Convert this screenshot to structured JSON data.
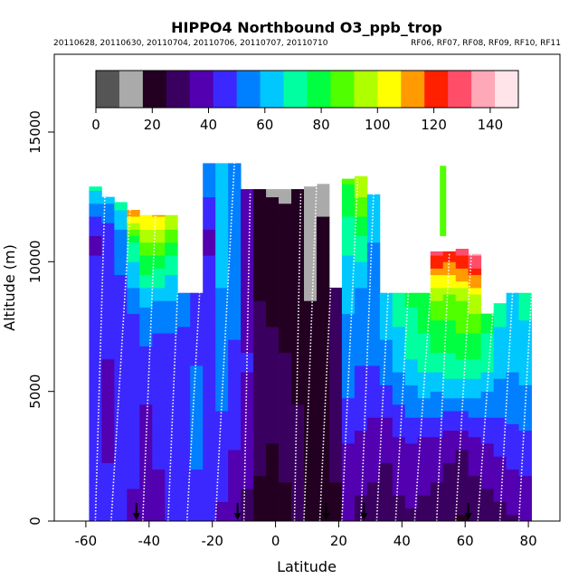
{
  "chart_data": {
    "type": "heatmap",
    "title": "HIPPO4 Northbound O3_ppb_trop",
    "subtitle_left": "20110628, 20110630, 20110704, 20110706, 20110707, 20110710",
    "subtitle_right": "RF06, RF07, RF08, RF09, RF10, RF11",
    "xlabel": "Latitude",
    "ylabel": "Altitude (m)",
    "xlim": [
      -70,
      90
    ],
    "ylim": [
      0,
      18000
    ],
    "x_ticks": [
      -60,
      -40,
      -20,
      0,
      20,
      40,
      60,
      80
    ],
    "y_ticks": [
      0,
      5000,
      10000,
      15000
    ],
    "colorbar": {
      "range": [
        0,
        150
      ],
      "ticks": [
        0,
        20,
        40,
        60,
        80,
        100,
        120,
        140
      ],
      "colors": [
        "#555555",
        "#aaaaaa",
        "#230022",
        "#3a0060",
        "#5200b0",
        "#3b28ff",
        "#0080ff",
        "#00c8ff",
        "#00ffa0",
        "#00ff40",
        "#50ff00",
        "#b0ff00",
        "#ffff00",
        "#ff9a00",
        "#ff2000",
        "#ff4d6a",
        "#ffa8b8",
        "#ffe4ea"
      ]
    },
    "columns": [
      {
        "lat": -57,
        "top": 12900,
        "prof": [
          [
            0,
            45
          ],
          [
            4000,
            42
          ],
          [
            8000,
            46
          ],
          [
            11000,
            40
          ],
          [
            12900,
            68
          ]
        ]
      },
      {
        "lat": -53,
        "top": 12500,
        "prof": [
          [
            0,
            43
          ],
          [
            5000,
            40
          ],
          [
            9000,
            45
          ],
          [
            11000,
            42
          ],
          [
            12500,
            62
          ]
        ]
      },
      {
        "lat": -49,
        "top": 12300,
        "prof": [
          [
            0,
            42
          ],
          [
            5000,
            44
          ],
          [
            9000,
            48
          ],
          [
            11000,
            55
          ],
          [
            12300,
            70
          ]
        ]
      },
      {
        "lat": -45,
        "top": 12000,
        "prof": [
          [
            0,
            40
          ],
          [
            4000,
            45
          ],
          [
            8000,
            50
          ],
          [
            10500,
            70
          ],
          [
            12000,
            120
          ]
        ]
      },
      {
        "lat": -41,
        "top": 11800,
        "prof": [
          [
            0,
            38
          ],
          [
            5000,
            42
          ],
          [
            8000,
            55
          ],
          [
            10500,
            88
          ],
          [
            11800,
            108
          ]
        ]
      },
      {
        "lat": -37,
        "top": 11800,
        "prof": [
          [
            0,
            40
          ],
          [
            5000,
            44
          ],
          [
            8000,
            52
          ],
          [
            10500,
            85
          ],
          [
            11800,
            110
          ]
        ]
      },
      {
        "lat": -33,
        "top": 11800,
        "prof": [
          [
            0,
            42
          ],
          [
            4000,
            45
          ],
          [
            7000,
            48
          ],
          [
            10000,
            70
          ],
          [
            11800,
            100
          ]
        ]
      },
      {
        "lat": -29,
        "top": 8800,
        "prof": [
          [
            0,
            44
          ],
          [
            3000,
            50
          ],
          [
            6000,
            48
          ],
          [
            8800,
            52
          ]
        ]
      },
      {
        "lat": -25,
        "top": 8800,
        "prof": [
          [
            0,
            46
          ],
          [
            3000,
            52
          ],
          [
            6000,
            50
          ],
          [
            8800,
            48
          ]
        ]
      },
      {
        "lat": -21,
        "top": 13800,
        "prof": [
          [
            0,
            44
          ],
          [
            4000,
            48
          ],
          [
            8000,
            46
          ],
          [
            11000,
            40
          ],
          [
            13800,
            58
          ]
        ]
      },
      {
        "lat": -17,
        "top": 13800,
        "prof": [
          [
            0,
            40
          ],
          [
            3000,
            48
          ],
          [
            7000,
            55
          ],
          [
            10000,
            60
          ],
          [
            13800,
            62
          ]
        ]
      },
      {
        "lat": -13,
        "top": 13800,
        "prof": [
          [
            0,
            38
          ],
          [
            3000,
            42
          ],
          [
            7000,
            50
          ],
          [
            10000,
            55
          ],
          [
            13800,
            58
          ]
        ]
      },
      {
        "lat": -9,
        "top": 12800,
        "prof": [
          [
            0,
            30
          ],
          [
            3000,
            38
          ],
          [
            6000,
            42
          ],
          [
            9000,
            40
          ],
          [
            12800,
            35
          ]
        ]
      },
      {
        "lat": -5,
        "top": 12800,
        "prof": [
          [
            0,
            20
          ],
          [
            3000,
            28
          ],
          [
            6000,
            30
          ],
          [
            9000,
            24
          ],
          [
            12800,
            18
          ]
        ]
      },
      {
        "lat": -1,
        "top": 12800,
        "prof": [
          [
            0,
            22
          ],
          [
            3000,
            25
          ],
          [
            6000,
            28
          ],
          [
            9000,
            22
          ],
          [
            12800,
            16
          ]
        ]
      },
      {
        "lat": 3,
        "top": 12800,
        "prof": [
          [
            0,
            24
          ],
          [
            3000,
            26
          ],
          [
            6000,
            26
          ],
          [
            9000,
            21
          ],
          [
            12800,
            16
          ]
        ]
      },
      {
        "lat": 7,
        "top": 12800,
        "prof": [
          [
            0,
            26
          ],
          [
            3000,
            26
          ],
          [
            6000,
            24
          ],
          [
            9000,
            20
          ],
          [
            12800,
            17
          ]
        ]
      },
      {
        "lat": 11,
        "top": 12900,
        "prof": [
          [
            0,
            22
          ],
          [
            3000,
            20
          ],
          [
            6000,
            20
          ],
          [
            9000,
            16
          ],
          [
            12900,
            14
          ]
        ]
      },
      {
        "lat": 15,
        "top": 13000,
        "prof": [
          [
            0,
            20
          ],
          [
            3000,
            18
          ],
          [
            6000,
            20
          ],
          [
            9000,
            18
          ],
          [
            13000,
            16
          ]
        ]
      },
      {
        "lat": 19,
        "top": 9000,
        "prof": [
          [
            0,
            24
          ],
          [
            3000,
            26
          ],
          [
            6000,
            28
          ],
          [
            9000,
            30
          ]
        ]
      },
      {
        "lat": 23,
        "top": 13200,
        "prof": [
          [
            0,
            34
          ],
          [
            3000,
            42
          ],
          [
            6000,
            55
          ],
          [
            9000,
            60
          ],
          [
            11000,
            70
          ],
          [
            13200,
            85
          ]
        ]
      },
      {
        "lat": 27,
        "top": 13300,
        "prof": [
          [
            0,
            30
          ],
          [
            3000,
            40
          ],
          [
            6000,
            50
          ],
          [
            9000,
            58
          ],
          [
            11000,
            75
          ],
          [
            13300,
            100
          ]
        ]
      },
      {
        "lat": 31,
        "top": 12600,
        "prof": [
          [
            0,
            28
          ],
          [
            3000,
            38
          ],
          [
            6000,
            50
          ],
          [
            9000,
            55
          ],
          [
            12600,
            62
          ]
        ]
      },
      {
        "lat": 35,
        "top": 8800,
        "prof": [
          [
            0,
            28
          ],
          [
            3000,
            35
          ],
          [
            6000,
            55
          ],
          [
            8800,
            65
          ]
        ]
      },
      {
        "lat": 39,
        "top": 8800,
        "prof": [
          [
            0,
            30
          ],
          [
            3000,
            40
          ],
          [
            6000,
            60
          ],
          [
            8800,
            72
          ]
        ]
      },
      {
        "lat": 43,
        "top": 8800,
        "prof": [
          [
            0,
            32
          ],
          [
            3000,
            42
          ],
          [
            6000,
            65
          ],
          [
            8800,
            78
          ]
        ]
      },
      {
        "lat": 47,
        "top": 8800,
        "prof": [
          [
            0,
            30
          ],
          [
            3000,
            40
          ],
          [
            6000,
            70
          ],
          [
            8800,
            82
          ]
        ]
      },
      {
        "lat": 51,
        "top": 10400,
        "prof": [
          [
            0,
            28
          ],
          [
            3000,
            38
          ],
          [
            6000,
            70
          ],
          [
            8500,
            90
          ],
          [
            10400,
            128
          ]
        ]
      },
      {
        "lat": 55,
        "top": 10400,
        "prof": [
          [
            0,
            26
          ],
          [
            3000,
            36
          ],
          [
            6000,
            72
          ],
          [
            8500,
            88
          ],
          [
            10400,
            125
          ]
        ]
      },
      {
        "lat": 59,
        "top": 10500,
        "prof": [
          [
            0,
            24
          ],
          [
            3000,
            34
          ],
          [
            6000,
            74
          ],
          [
            8500,
            92
          ],
          [
            10500,
            132
          ]
        ]
      },
      {
        "lat": 63,
        "top": 10300,
        "prof": [
          [
            0,
            26
          ],
          [
            3000,
            38
          ],
          [
            6000,
            72
          ],
          [
            8500,
            96
          ],
          [
            10300,
            136
          ]
        ]
      },
      {
        "lat": 67,
        "top": 8000,
        "prof": [
          [
            0,
            28
          ],
          [
            3000,
            42
          ],
          [
            6000,
            68
          ],
          [
            8000,
            80
          ]
        ]
      },
      {
        "lat": 71,
        "top": 8400,
        "prof": [
          [
            0,
            30
          ],
          [
            3000,
            44
          ],
          [
            6000,
            62
          ],
          [
            8400,
            70
          ]
        ]
      },
      {
        "lat": 75,
        "top": 8800,
        "prof": [
          [
            0,
            32
          ],
          [
            3000,
            46
          ],
          [
            6000,
            60
          ],
          [
            8800,
            66
          ]
        ]
      },
      {
        "lat": 79,
        "top": 8800,
        "prof": [
          [
            0,
            34
          ],
          [
            3000,
            48
          ],
          [
            6000,
            62
          ],
          [
            8800,
            70
          ]
        ]
      }
    ],
    "patches": [
      {
        "lat": 53,
        "y0": 11000,
        "y1": 13700,
        "v": 85
      }
    ],
    "profiles": [
      {
        "lat_low": -57,
        "lat_high": -54,
        "top": 12500
      },
      {
        "lat_low": -52,
        "lat_high": -46,
        "top": 12000
      },
      {
        "lat_low": -42,
        "lat_high": -38,
        "top": 11800
      },
      {
        "lat_low": -34,
        "lat_high": -31,
        "top": 8800
      },
      {
        "lat_low": -28,
        "lat_high": -24,
        "top": 8800
      },
      {
        "lat_low": -19,
        "lat_high": -13,
        "top": 13800
      },
      {
        "lat_low": -10,
        "lat_high": -8,
        "top": 12700
      },
      {
        "lat_low": 6,
        "lat_high": 8,
        "top": 12700
      },
      {
        "lat_low": 9,
        "lat_high": 13,
        "top": 13000
      },
      {
        "lat_low": 14,
        "lat_high": 19,
        "top": 13100
      },
      {
        "lat_low": 21,
        "lat_high": 26,
        "top": 13200
      },
      {
        "lat_low": 27,
        "lat_high": 31,
        "top": 12600
      },
      {
        "lat_low": 32,
        "lat_high": 37,
        "top": 12000
      },
      {
        "lat_low": 38,
        "lat_high": 42,
        "top": 8800
      },
      {
        "lat_low": 44,
        "lat_high": 49,
        "top": 8800
      },
      {
        "lat_low": 51,
        "lat_high": 55,
        "top": 10300
      },
      {
        "lat_low": 57,
        "lat_high": 62,
        "top": 10400
      },
      {
        "lat_low": 64,
        "lat_high": 69,
        "top": 8500
      },
      {
        "lat_low": 71,
        "lat_high": 75,
        "top": 8800
      },
      {
        "lat_low": 77,
        "lat_high": 81,
        "top": 8800
      }
    ],
    "markers": [
      -44,
      -12,
      16,
      28,
      61
    ]
  }
}
